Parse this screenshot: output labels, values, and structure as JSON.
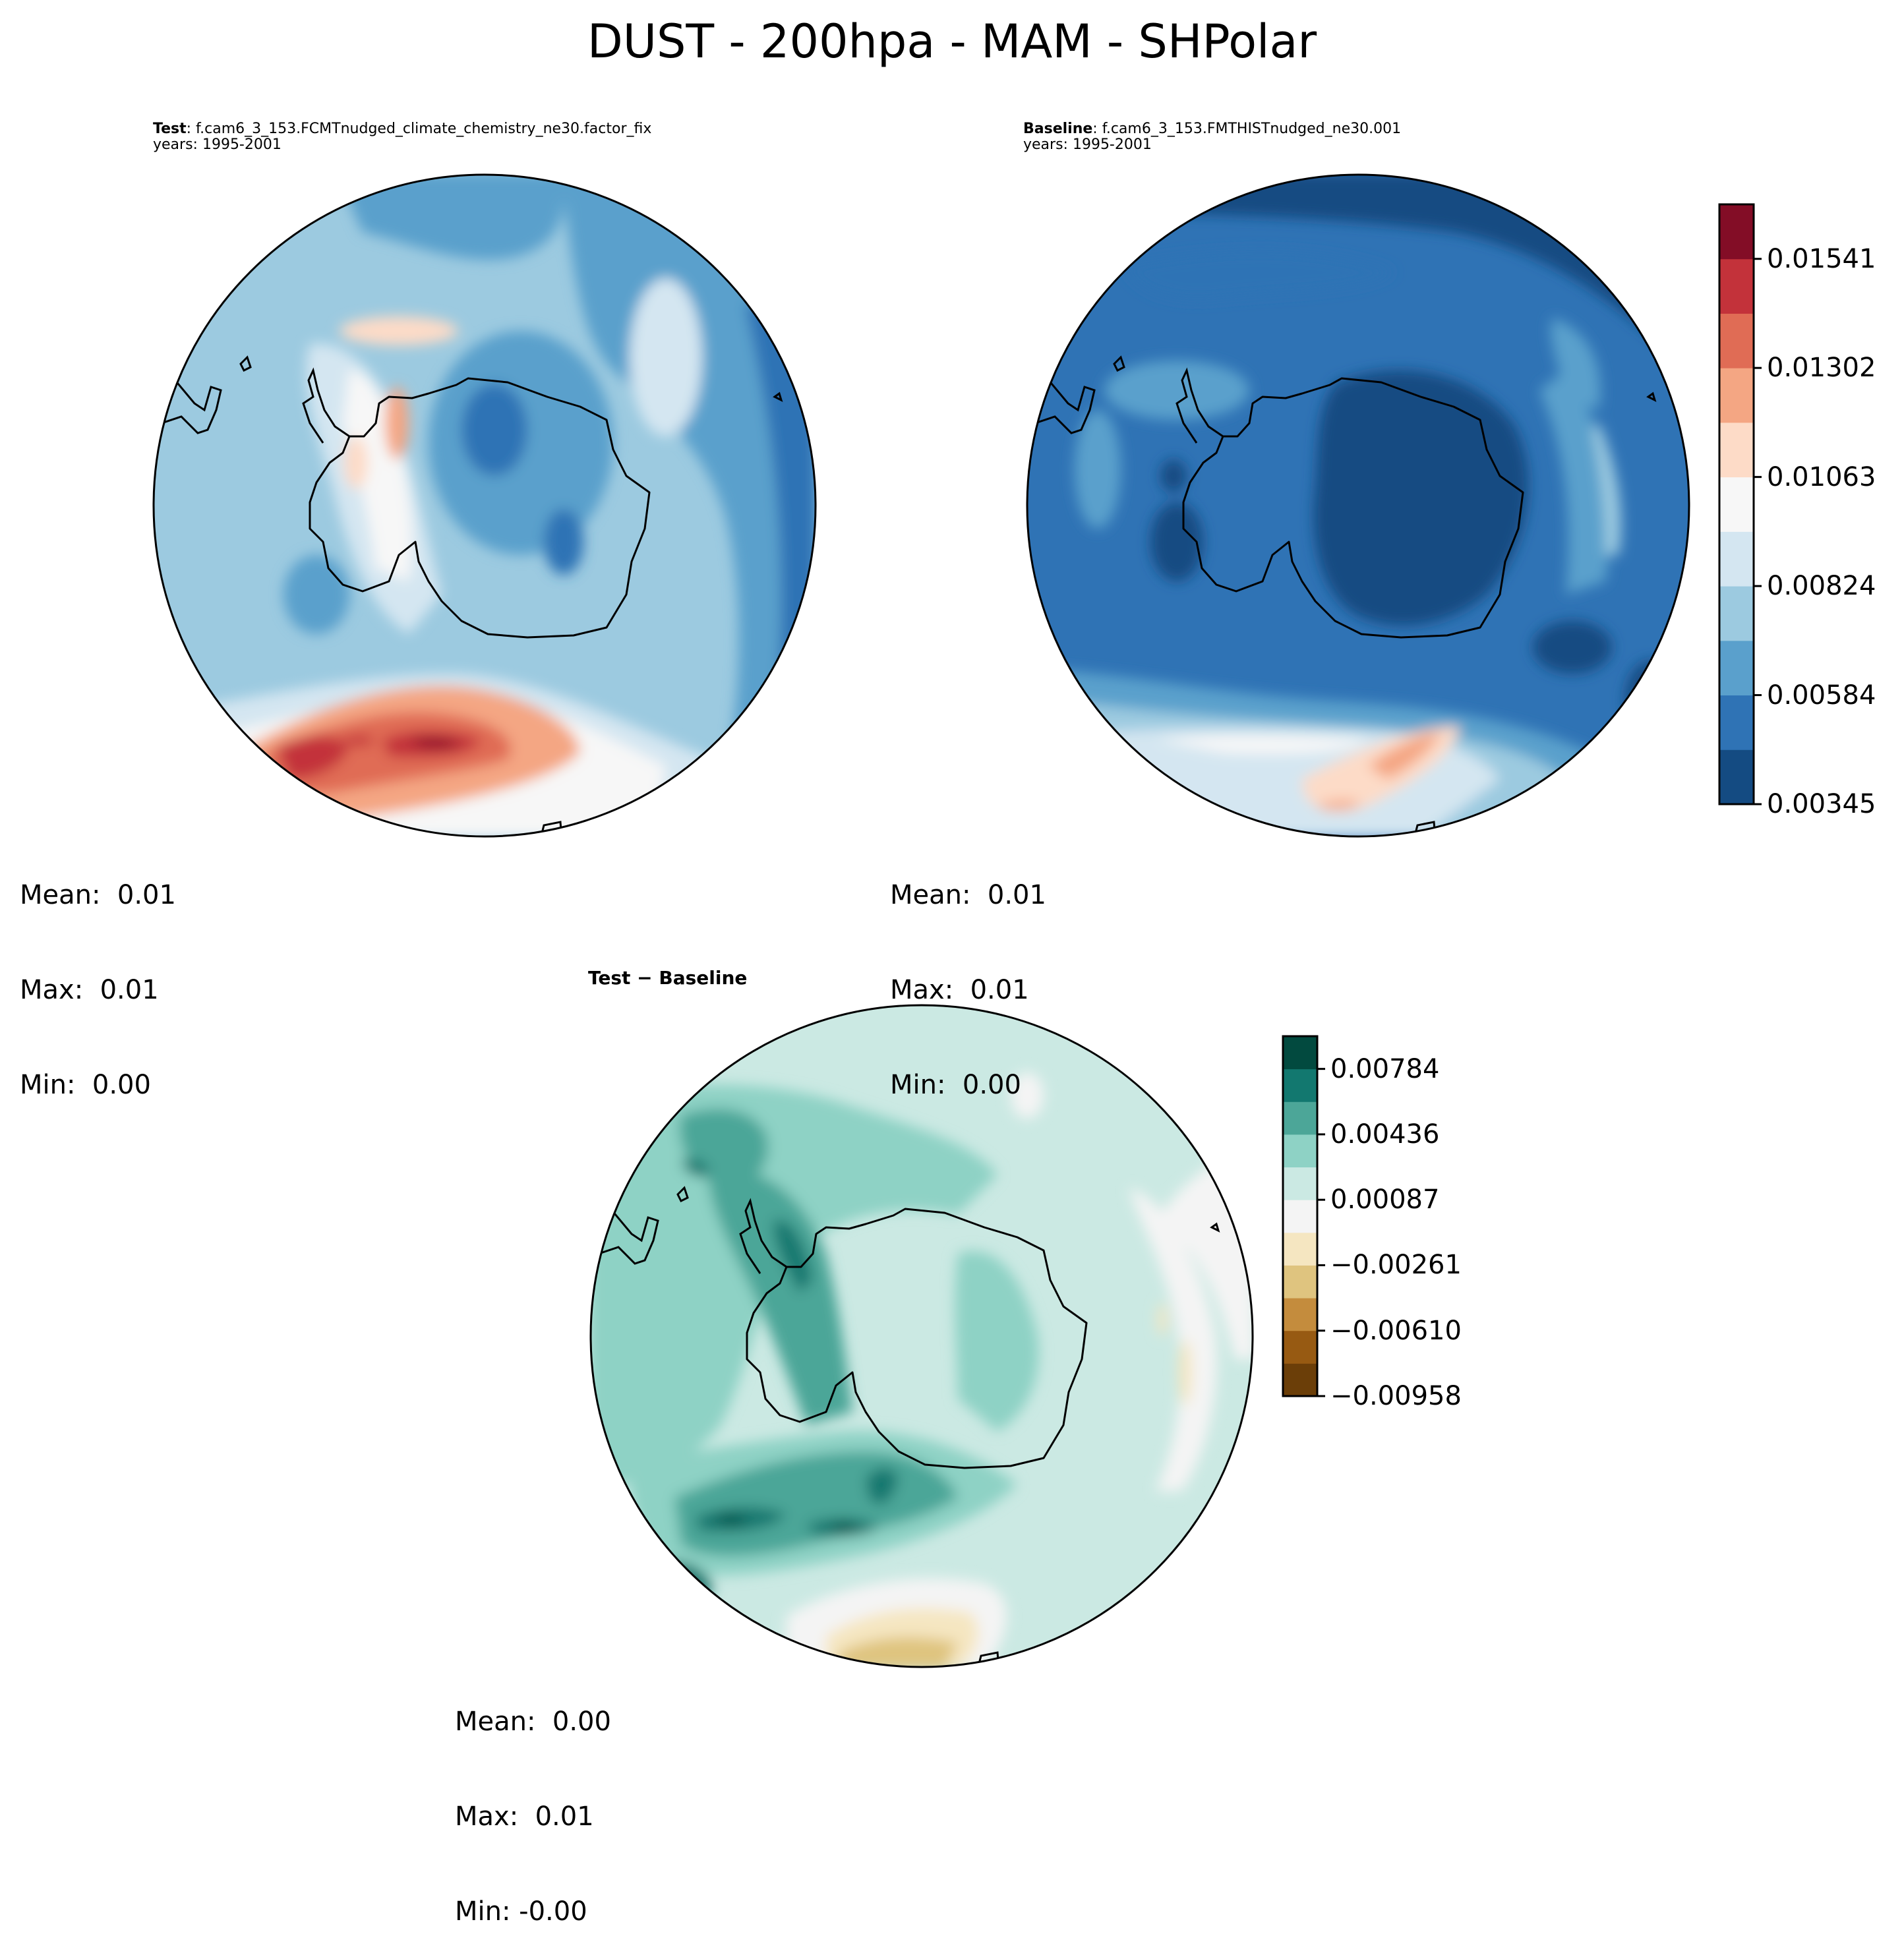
{
  "title": "DUST - 200hpa - MAM - SHPolar",
  "panels": [
    {
      "id": "test",
      "label_bold": "Test",
      "label_rest": ": f.cam6_3_153.FCMTnudged_climate_chemistry_ne30.factor_fix",
      "years": "years: 1995-2001",
      "stats": {
        "mean": "Mean:  0.01",
        "max": "Max:  0.01",
        "min": "Min:  0.00"
      }
    },
    {
      "id": "baseline",
      "label_bold": "Baseline",
      "label_rest": ": f.cam6_3_153.FMTHISTnudged_ne30.001",
      "years": "years: 1995-2001",
      "stats": {
        "mean": "Mean:  0.01",
        "max": "Max:  0.01",
        "min": "Min:  0.00"
      }
    },
    {
      "id": "diff",
      "label_bold": "Test − Baseline",
      "label_rest": "",
      "years": "",
      "stats": {
        "mean": "Mean:  0.00",
        "max": "Max:  0.01",
        "min": "Min: -0.00"
      }
    }
  ],
  "colorbars": {
    "main": {
      "colors": [
        "#144b82",
        "#2f73b5",
        "#5aa0cc",
        "#9ccae0",
        "#d4e6f1",
        "#f7f7f7",
        "#fddbc7",
        "#f4a683",
        "#e06c55",
        "#c3323a",
        "#830d26"
      ],
      "tick_labels": [
        "0.00345",
        "0.00584",
        "0.00824",
        "0.01063",
        "0.01302",
        "0.01541"
      ]
    },
    "diff": {
      "colors": [
        "#6b3e08",
        "#975a12",
        "#c48c3d",
        "#dfc47f",
        "#f5e6c1",
        "#f4f4f4",
        "#cbe9e3",
        "#8ed2c5",
        "#4ca698",
        "#12786f",
        "#024a3f"
      ],
      "tick_labels": [
        "−0.00958",
        "−0.00610",
        "−0.00261",
        "0.00087",
        "0.00436",
        "0.00784"
      ]
    }
  },
  "chart_data": [
    {
      "type": "heatmap",
      "title": "Test",
      "projection": "south-polar-stereographic",
      "colormap": "RdBu_r",
      "levels": [
        0.00345,
        0.00584,
        0.00824,
        0.01063,
        0.01302,
        0.01541
      ],
      "mean": 0.01,
      "max": 0.01,
      "min": 0.0
    },
    {
      "type": "heatmap",
      "title": "Baseline",
      "projection": "south-polar-stereographic",
      "colormap": "RdBu_r",
      "levels": [
        0.00345,
        0.00584,
        0.00824,
        0.01063,
        0.01302,
        0.01541
      ],
      "mean": 0.01,
      "max": 0.01,
      "min": 0.0
    },
    {
      "type": "heatmap",
      "title": "Test − Baseline",
      "projection": "south-polar-stereographic",
      "colormap": "BrBG",
      "levels": [
        -0.00958,
        -0.0061,
        -0.00261,
        0.00087,
        0.00436,
        0.00784
      ],
      "mean": 0.0,
      "max": 0.01,
      "min": -0.0
    }
  ]
}
